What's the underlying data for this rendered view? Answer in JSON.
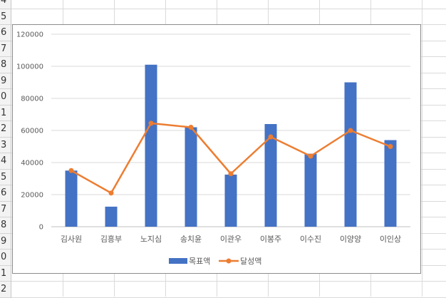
{
  "spreadsheet": {
    "row_numbers": [
      "4",
      "5",
      "6",
      "7",
      "8",
      "9",
      "0",
      "1",
      "2",
      "3",
      "4",
      "5",
      "6",
      "7",
      "8",
      "9",
      "0",
      "1",
      "2"
    ]
  },
  "chart_data": {
    "type": "bar",
    "categories": [
      "김사원",
      "김흥부",
      "노지심",
      "송치윤",
      "이관우",
      "이봉주",
      "이수진",
      "이양양",
      "이인상"
    ],
    "series": [
      {
        "name": "목표액",
        "type": "bar",
        "color": "#4472c4",
        "values": [
          35000,
          12500,
          101000,
          62000,
          32500,
          64000,
          45500,
          90000,
          54000
        ]
      },
      {
        "name": "달성액",
        "type": "line",
        "color": "#ed7d31",
        "values": [
          35000,
          21000,
          64500,
          62000,
          33000,
          56000,
          44000,
          60000,
          50000
        ]
      }
    ],
    "yticks": [
      "0",
      "20000",
      "40000",
      "60000",
      "80000",
      "100000",
      "120000"
    ],
    "ylim": [
      0,
      120000
    ],
    "grid": true,
    "legend_position": "bottom"
  }
}
